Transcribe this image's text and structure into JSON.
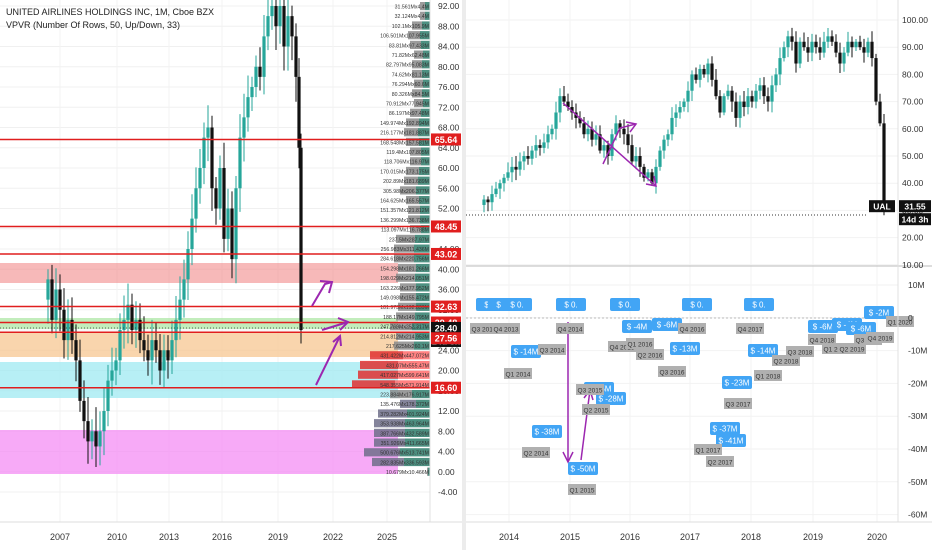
{
  "chart_title": "UNITED AIRLINES HOLDINGS INC, 1M, Cboe BZX",
  "indicator_label": "VPVR (Number Of Rows, 50, Up/Down, 33)",
  "left_chart": {
    "y_ticks": [
      "92.00",
      "88.00",
      "84.00",
      "80.00",
      "76.00",
      "72.00",
      "68.00",
      "64.00",
      "60.00",
      "56.00",
      "52.00",
      "48.00",
      "44.00",
      "40.00",
      "36.00",
      "32.00",
      "28.00",
      "24.00",
      "20.00",
      "16.00",
      "12.00",
      "8.00",
      "4.00",
      "0.00",
      "-4.00"
    ],
    "x_ticks": [
      "2007",
      "2010",
      "2013",
      "2016",
      "2019",
      "2022",
      "2025"
    ],
    "price_tags": [
      {
        "label": "65.64",
        "color": "#e01e1e"
      },
      {
        "label": "48.45",
        "color": "#e01e1e"
      },
      {
        "label": "43.02",
        "color": "#e01e1e"
      },
      {
        "label": "32.63",
        "color": "#e01e1e"
      },
      {
        "label": "29.48",
        "color": "#e01e1e"
      },
      {
        "label": "28.40",
        "color": "#111111"
      },
      {
        "label": "14d 3h",
        "color": "#111111"
      },
      {
        "label": "27.56",
        "color": "#e01e1e"
      },
      {
        "label": "16.60",
        "color": "#e01e1e"
      }
    ],
    "volume_labels": [
      "31.561Mx4.4M",
      "32.124Mx4.4M",
      "102.1Mx105.9M",
      "106.501Mx107.955M",
      "83.81Mx97.433M",
      "71.82Mx62.48M",
      "82.797Mx95.083M",
      "74.62Mx81.13M",
      "76.294Mx60.6M",
      "80.326Mx84.5M",
      "70.912Mx77.945M",
      "86.197Mx97.48M",
      "149.974Mx192.894M",
      "216.177Mx181.887M",
      "168.548Mx157.581M",
      "119.4Mx107.805M",
      "118.706Mx116.97M",
      "170.015Mx173.175M",
      "202.89Mx181.689M",
      "305.98Mx206.377M",
      "164.625Mx165.557M",
      "151.357Mx121.812M",
      "136.299Mx136.738M",
      "113.097Mx116.788M",
      "237.5Mx287.97M",
      "256.983Mx311.436M",
      "284.618Mx220.756M",
      "154.298Mx181.266M",
      "198.029Mx214.051M",
      "163.226Mx177.952M",
      "149.098Mx155.472M",
      "181.973Mx192.839M",
      "188.17Mx149.795M",
      "247.769Mx252.317M",
      "214.812Mx214.953M",
      "217.625Mx260.1M",
      "431.422Mx447.072M",
      "431.07Mx555.47M",
      "417.027Mx599.641M",
      "548.355Mx571.914M",
      "223.884Mx176.917M",
      "135.476Mx178.372M",
      "379.282Mx401.924M",
      "353.938Mx463.964M",
      "387.766Mx432.589M",
      "351.926Mx411.665M",
      "500.676Mx513.741M",
      "282.835Mx336.593M",
      "10.679Mx10.466M"
    ]
  },
  "right_chart": {
    "y_ticks_price": [
      "100.00",
      "90.00",
      "80.00",
      "70.00",
      "60.00",
      "50.00",
      "40.00",
      "30.00",
      "20.00",
      "10.00"
    ],
    "y_ticks_bottom": [
      "10M",
      "0",
      "-10M",
      "-20M",
      "-30M",
      "-40M",
      "-50M",
      "-60M"
    ],
    "x_ticks": [
      "2014",
      "2015",
      "2016",
      "2017",
      "2018",
      "2019",
      "2020"
    ],
    "symbol_tag": "UAL",
    "last_price": "31.55",
    "countdown": "14d 3h",
    "flow_flags": [
      {
        "value": "$ 0."
      },
      {
        "value": "$ 0."
      },
      {
        "value": "$ 0."
      },
      {
        "value": "$ 0."
      },
      {
        "value": "$ 0."
      },
      {
        "value": "$ 0."
      },
      {
        "value": "$ 0."
      },
      {
        "value": "$ -4M"
      },
      {
        "value": "$ -6M"
      },
      {
        "value": "$ -14M"
      },
      {
        "value": "$ -13M"
      },
      {
        "value": "$ -14M"
      },
      {
        "value": "$ -38M"
      },
      {
        "value": "$ -50M"
      },
      {
        "value": "$ -25M"
      },
      {
        "value": "$ -28M"
      },
      {
        "value": "$ -23M"
      },
      {
        "value": "$ -37M"
      },
      {
        "value": "$ -41M"
      },
      {
        "value": "$ -6M"
      },
      {
        "value": "$ -2M"
      },
      {
        "value": "$ -4M"
      },
      {
        "value": "$ -6M"
      }
    ],
    "quarter_tags": [
      {
        "label": "Q3 2013"
      },
      {
        "label": "Q4 2013"
      },
      {
        "label": "Q1 2014"
      },
      {
        "label": "Q2 2014"
      },
      {
        "label": "Q3 2014"
      },
      {
        "label": "Q4 2014"
      },
      {
        "label": "Q1 2015"
      },
      {
        "label": "Q2 2015"
      },
      {
        "label": "Q3 2015"
      },
      {
        "label": "Q4 2015"
      },
      {
        "label": "Q1 2016"
      },
      {
        "label": "Q2 2016"
      },
      {
        "label": "Q3 2016"
      },
      {
        "label": "Q4 2016"
      },
      {
        "label": "Q1 2017"
      },
      {
        "label": "Q2 2017"
      },
      {
        "label": "Q3 2017"
      },
      {
        "label": "Q4 2017"
      },
      {
        "label": "Q1 2018"
      },
      {
        "label": "Q2 2018"
      },
      {
        "label": "Q3 2018"
      },
      {
        "label": "Q4 2018"
      },
      {
        "label": "Q1 2019"
      },
      {
        "label": "Q2 2019"
      },
      {
        "label": "Q3 2019"
      },
      {
        "label": "Q4 2019"
      },
      {
        "label": "Q1 2020"
      }
    ]
  },
  "colors": {
    "red_line": "#e01e1e",
    "up": "#26a69a",
    "down": "#111111",
    "purple": "#9c27b0",
    "flag": "#42a5f5",
    "qtag": "#b0b0b0",
    "vol_bar": "#8a8a8a",
    "vol_green": "#2e7d6b",
    "vol_red": "#e03030"
  }
}
